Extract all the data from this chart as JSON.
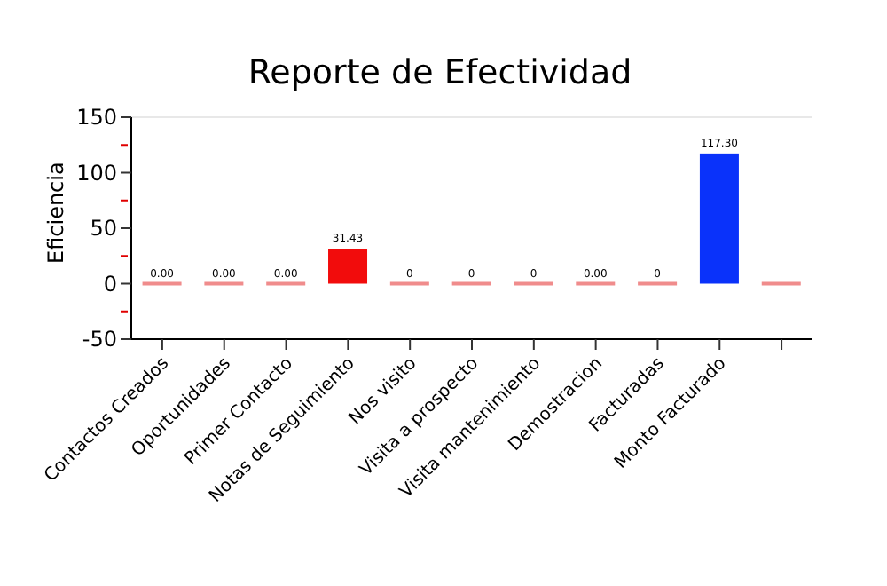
{
  "chart_data": {
    "type": "bar",
    "title": "Reporte de Efectividad",
    "ylabel": "Eficiencia",
    "categories": [
      "Contactos Creados",
      "Oportunidades",
      "Primer Contacto",
      "Notas de Seguimiento",
      "Nos visito",
      "Visita a prospecto",
      "Visita mantenimiento",
      "Demostracion",
      "Facturadas",
      "Monto Facturado",
      null
    ],
    "values": [
      0,
      0,
      0,
      31.43,
      0,
      0,
      0,
      0,
      0,
      117.3,
      0
    ],
    "value_labels": [
      "0.00",
      "0.00",
      "0.00",
      "31.43",
      "0",
      "0",
      "0",
      "0.00",
      "0",
      "117.30",
      null
    ],
    "colors": [
      "#f08c8c",
      "#f08c8c",
      "#f08c8c",
      "#f20c0c",
      "#f08c8c",
      "#f08c8c",
      "#f08c8c",
      "#f08c8c",
      "#f08c8c",
      "#0a32fa",
      "#f08c8c"
    ],
    "ylim": [
      -50,
      150
    ],
    "yticks": [
      -50,
      {
        "value": -25,
        "label": null
      },
      0,
      {
        "value": 25,
        "label": null
      },
      50,
      {
        "value": 75,
        "label": null
      },
      100,
      {
        "value": 125,
        "label": null
      },
      150
    ]
  }
}
